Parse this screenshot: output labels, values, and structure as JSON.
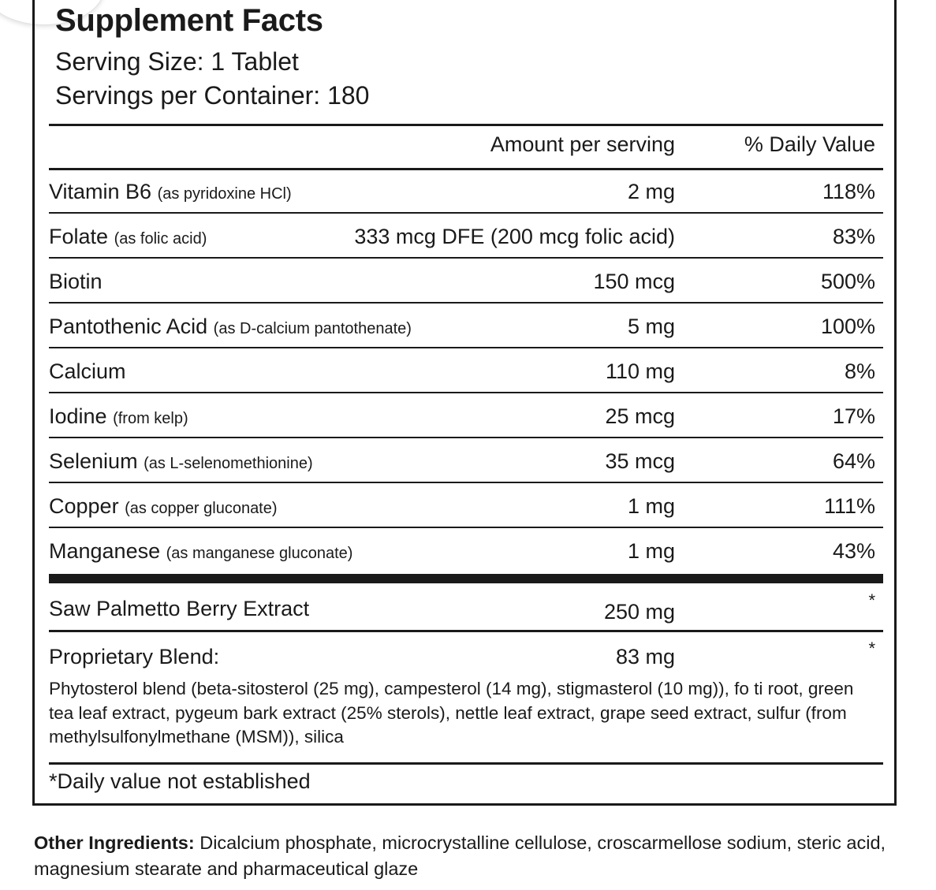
{
  "title": "Supplement Facts",
  "serving_size": "Serving Size: 1 Tablet",
  "servings_per_container": "Servings per Container: 180",
  "header": {
    "amount": "Amount per serving",
    "daily_value": "% Daily Value"
  },
  "nutrients": [
    {
      "name": "Vitamin B6",
      "source": "(as pyridoxine HCl)",
      "amount": "2 mg",
      "dv": "118%"
    },
    {
      "name": "Folate",
      "source": "(as folic acid)",
      "amount": "333 mcg DFE (200 mcg folic acid)",
      "dv": "83%"
    },
    {
      "name": "Biotin",
      "source": "",
      "amount": "150 mcg",
      "dv": "500%"
    },
    {
      "name": "Pantothenic Acid",
      "source": "(as D-calcium pantothenate)",
      "amount": "5 mg",
      "dv": "100%"
    },
    {
      "name": "Calcium",
      "source": "",
      "amount": "110 mg",
      "dv": "8%"
    },
    {
      "name": "Iodine",
      "source": "(from kelp)",
      "amount": "25 mcg",
      "dv": "17%"
    },
    {
      "name": "Selenium",
      "source": "(as L-selenomethionine)",
      "amount": "35 mcg",
      "dv": "64%"
    },
    {
      "name": "Copper",
      "source": "(as copper gluconate)",
      "amount": "1 mg",
      "dv": "111%"
    },
    {
      "name": "Manganese",
      "source": "(as manganese gluconate)",
      "amount": "1 mg",
      "dv": "43%"
    }
  ],
  "extracts": [
    {
      "name": "Saw Palmetto Berry Extract",
      "amount": "250 mg",
      "dv": "*"
    },
    {
      "name": "Proprietary Blend:",
      "amount": "83 mg",
      "dv": "*"
    }
  ],
  "blend_description": "Phytosterol blend (beta-sitosterol (25 mg), campesterol (14 mg), stigmasterol (10 mg)), fo ti root, green tea leaf extract, pygeum bark extract (25% sterols), nettle leaf extract, grape seed extract, sulfur (from methylsulfonylmethane (MSM)), silica",
  "footnote": "*Daily value not established",
  "other_ingredients": {
    "label": "Other Ingredients:",
    "text": " Dicalcium phosphate, microcrystalline cellulose, croscarmellose sodium, steric acid, magnesium stearate and pharmaceutical glaze"
  }
}
